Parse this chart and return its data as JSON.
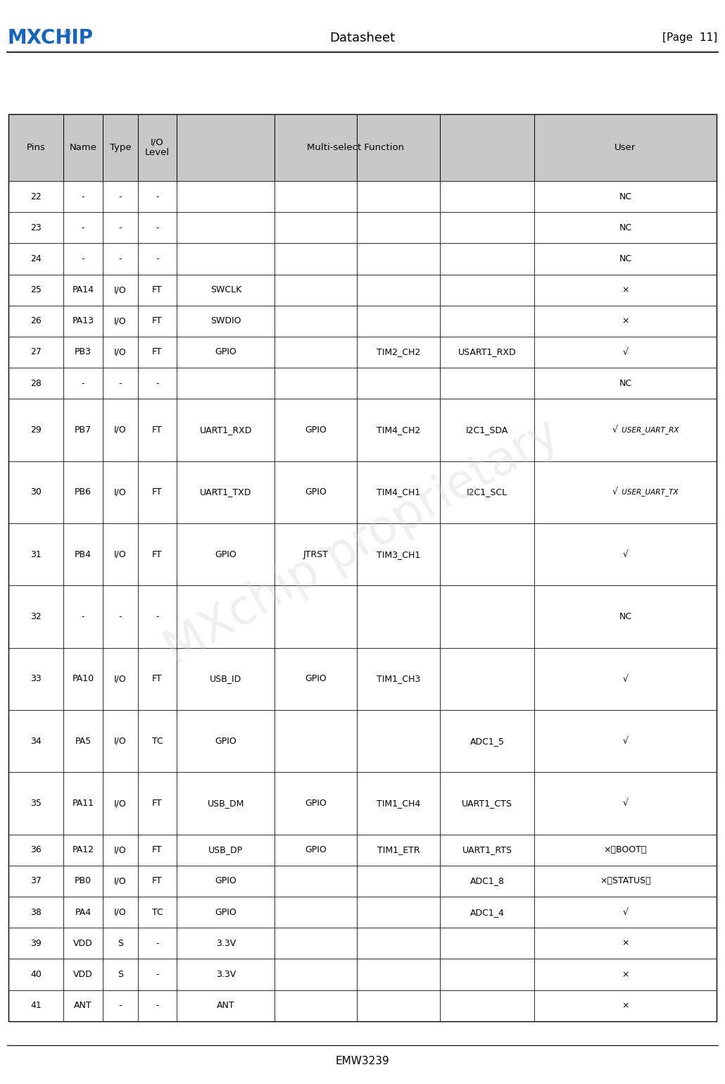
{
  "title_center": "Datasheet",
  "title_right": "[Page  11]",
  "footer": "EMW3239",
  "header_bg": "#c8c8c8",
  "row_bg_white": "#ffffff",
  "border_color": "#000000",
  "rows": [
    {
      "pin": "22",
      "name": "-",
      "type": "-",
      "level": "-",
      "f1": "",
      "f2": "",
      "f3": "",
      "f4": "",
      "user": "NC",
      "tall": false
    },
    {
      "pin": "23",
      "name": "-",
      "type": "-",
      "level": "-",
      "f1": "",
      "f2": "",
      "f3": "",
      "f4": "",
      "user": "NC",
      "tall": false
    },
    {
      "pin": "24",
      "name": "-",
      "type": "-",
      "level": "-",
      "f1": "",
      "f2": "",
      "f3": "",
      "f4": "",
      "user": "NC",
      "tall": false
    },
    {
      "pin": "25",
      "name": "PA14",
      "type": "I/O",
      "level": "FT",
      "f1": "SWCLK",
      "f2": "",
      "f3": "",
      "f4": "",
      "user": "×",
      "tall": false
    },
    {
      "pin": "26",
      "name": "PA13",
      "type": "I/O",
      "level": "FT",
      "f1": "SWDIO",
      "f2": "",
      "f3": "",
      "f4": "",
      "user": "×",
      "tall": false
    },
    {
      "pin": "27",
      "name": "PB3",
      "type": "I/O",
      "level": "FT",
      "f1": "GPIO",
      "f2": "",
      "f3": "TIM2_CH2",
      "f4": "USART1_RXD",
      "user": "√",
      "tall": false
    },
    {
      "pin": "28",
      "name": "-",
      "type": "-",
      "level": "-",
      "f1": "",
      "f2": "",
      "f3": "",
      "f4": "",
      "user": "NC",
      "tall": false
    },
    {
      "pin": "29",
      "name": "PB7",
      "type": "I/O",
      "level": "FT",
      "f1": "UART1_RXD",
      "f2": "GPIO",
      "f3": "TIM4_CH2",
      "f4": "I2C1_SDA",
      "user": "√  USER_UART_RX",
      "tall": true
    },
    {
      "pin": "30",
      "name": "PB6",
      "type": "I/O",
      "level": "FT",
      "f1": "UART1_TXD",
      "f2": "GPIO",
      "f3": "TIM4_CH1",
      "f4": "I2C1_SCL",
      "user": "√  USER_UART_TX",
      "tall": true
    },
    {
      "pin": "31",
      "name": "PB4",
      "type": "I/O",
      "level": "FT",
      "f1": "GPIO",
      "f2": "JTRST",
      "f3": "TIM3_CH1",
      "f4": "",
      "user": "√",
      "tall": true
    },
    {
      "pin": "32",
      "name": "-",
      "type": "-",
      "level": "-",
      "f1": "",
      "f2": "",
      "f3": "",
      "f4": "",
      "user": "NC",
      "tall": true
    },
    {
      "pin": "33",
      "name": "PA10",
      "type": "I/O",
      "level": "FT",
      "f1": "USB_ID",
      "f2": "GPIO",
      "f3": "TIM1_CH3",
      "f4": "",
      "user": "√",
      "tall": true
    },
    {
      "pin": "34",
      "name": "PA5",
      "type": "I/O",
      "level": "TC",
      "f1": "GPIO",
      "f2": "",
      "f3": "",
      "f4": "ADC1_5",
      "user": "√",
      "tall": true
    },
    {
      "pin": "35",
      "name": "PA11",
      "type": "I/O",
      "level": "FT",
      "f1": "USB_DM",
      "f2": "GPIO",
      "f3": "TIM1_CH4",
      "f4": "UART1_CTS",
      "user": "√",
      "tall": true
    },
    {
      "pin": "36",
      "name": "PA12",
      "type": "I/O",
      "level": "FT",
      "f1": "USB_DP",
      "f2": "GPIO",
      "f3": "TIM1_ETR",
      "f4": "UART1_RTS",
      "user": "×（BOOT）",
      "tall": false
    },
    {
      "pin": "37",
      "name": "PB0",
      "type": "I/O",
      "level": "FT",
      "f1": "GPIO",
      "f2": "",
      "f3": "",
      "f4": "ADC1_8",
      "user": "×（STATUS）",
      "tall": false
    },
    {
      "pin": "38",
      "name": "PA4",
      "type": "I/O",
      "level": "TC",
      "f1": "GPIO",
      "f2": "",
      "f3": "",
      "f4": "ADC1_4",
      "user": "√",
      "tall": false
    },
    {
      "pin": "39",
      "name": "VDD",
      "type": "S",
      "level": "-",
      "f1": "3.3V",
      "f2": "",
      "f3": "",
      "f4": "",
      "user": "×",
      "tall": false
    },
    {
      "pin": "40",
      "name": "VDD",
      "type": "S",
      "level": "-",
      "f1": "3.3V",
      "f2": "",
      "f3": "",
      "f4": "",
      "user": "×",
      "tall": false
    },
    {
      "pin": "41",
      "name": "ANT",
      "type": "-",
      "level": "-",
      "f1": "ANT",
      "f2": "",
      "f3": "",
      "f4": "",
      "user": "×",
      "tall": false
    }
  ]
}
